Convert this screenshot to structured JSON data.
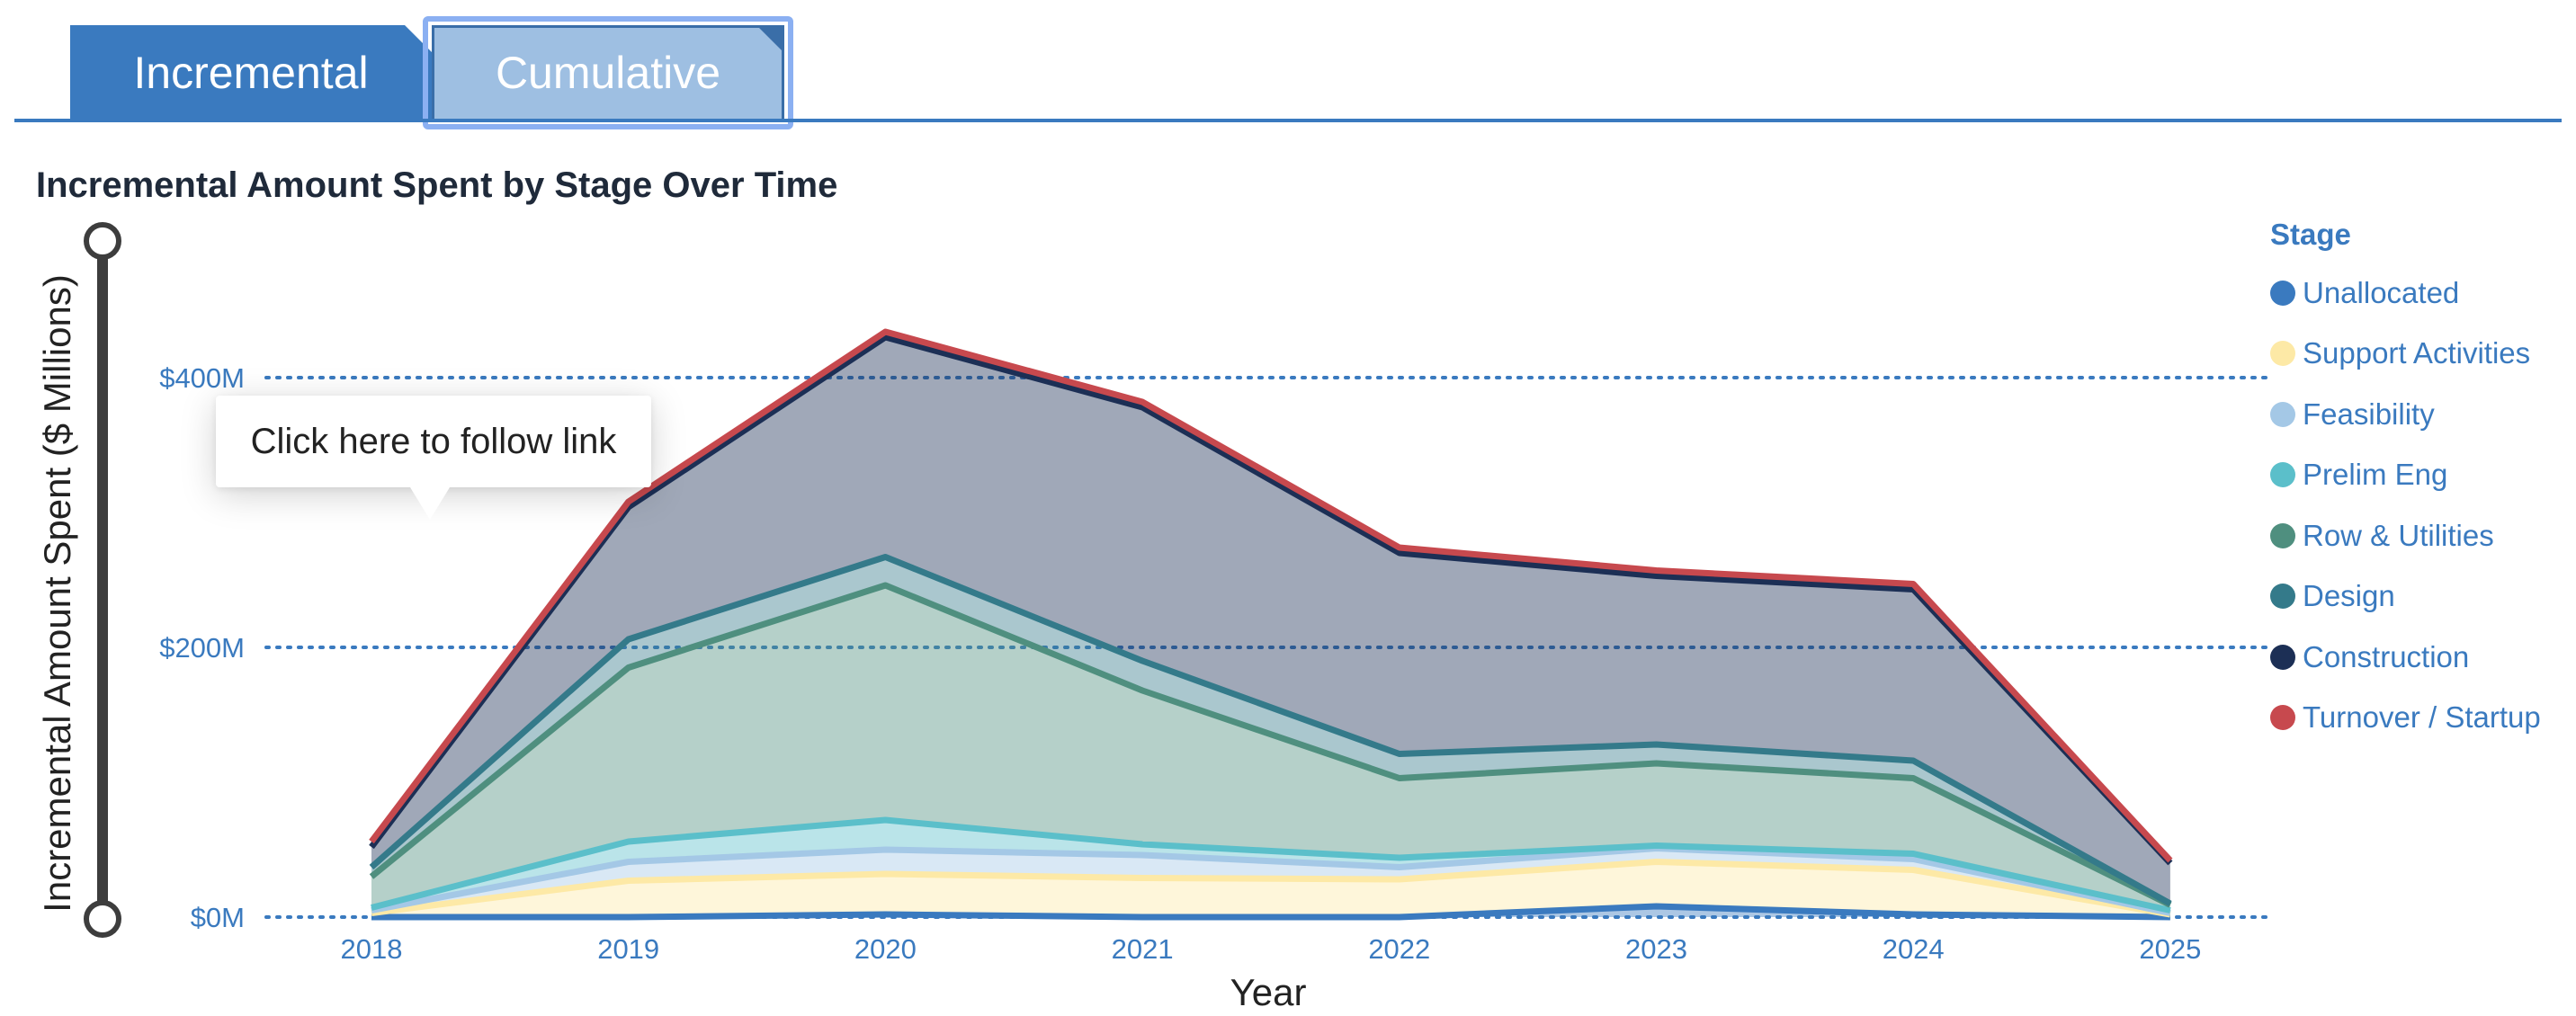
{
  "tabs": [
    {
      "label": "Incremental",
      "active": true
    },
    {
      "label": "Cumulative",
      "active": false,
      "focused": true
    }
  ],
  "tooltip": {
    "text": "Click here to follow link"
  },
  "legend": {
    "title": "Stage",
    "items": [
      {
        "label": "Unallocated",
        "color": "#3a7abf"
      },
      {
        "label": "Support Activities",
        "color": "#fde9a6"
      },
      {
        "label": "Feasibility",
        "color": "#a4c8e6"
      },
      {
        "label": "Prelim Eng",
        "color": "#5bbfca"
      },
      {
        "label": "Row & Utilities",
        "color": "#4f8f7f"
      },
      {
        "label": "Design",
        "color": "#347a8a"
      },
      {
        "label": "Construction",
        "color": "#1c2f55"
      },
      {
        "label": "Turnover / Startup",
        "color": "#c7494e"
      }
    ]
  },
  "chart_data": {
    "type": "area",
    "stacked": true,
    "title": "Incremental Amount Spent by Stage Over Time",
    "xlabel": "Year",
    "ylabel": "Incremental Amount Spent ($ Millions)",
    "ylim": [
      0,
      500
    ],
    "yticks": [
      {
        "value": 0,
        "label": "$0M"
      },
      {
        "value": 200,
        "label": "$200M"
      },
      {
        "value": 400,
        "label": "$400M"
      }
    ],
    "x": [
      "2018",
      "2019",
      "2020",
      "2021",
      "2022",
      "2023",
      "2024",
      "2025"
    ],
    "grid": "dotted horizontal at ticks",
    "legend_position": "right",
    "series": [
      {
        "name": "Unallocated",
        "color": "#3a7abf",
        "values": [
          0,
          0,
          2,
          0,
          0,
          8,
          2,
          0
        ]
      },
      {
        "name": "Support Activities",
        "color": "#fde9a6",
        "values": [
          3,
          27,
          30,
          29,
          28,
          33,
          33,
          2
        ]
      },
      {
        "name": "Feasibility",
        "color": "#a4c8e6",
        "values": [
          2,
          14,
          18,
          17,
          9,
          10,
          8,
          1
        ]
      },
      {
        "name": "Prelim Eng",
        "color": "#5bbfca",
        "values": [
          2,
          15,
          22,
          8,
          7,
          2,
          4,
          2
        ]
      },
      {
        "name": "Row & Utilities",
        "color": "#4f8f7f",
        "values": [
          23,
          129,
          174,
          114,
          59,
          61,
          56,
          4
        ]
      },
      {
        "name": "Design",
        "color": "#347a8a",
        "values": [
          7,
          21,
          21,
          22,
          18,
          14,
          13,
          1
        ]
      },
      {
        "name": "Construction",
        "color": "#1c2f55",
        "values": [
          15,
          98,
          163,
          188,
          149,
          125,
          127,
          30
        ]
      },
      {
        "name": "Turnover / Startup",
        "color": "#c7494e",
        "values": [
          4,
          4,
          4,
          4,
          4,
          4,
          4,
          2
        ]
      }
    ]
  }
}
